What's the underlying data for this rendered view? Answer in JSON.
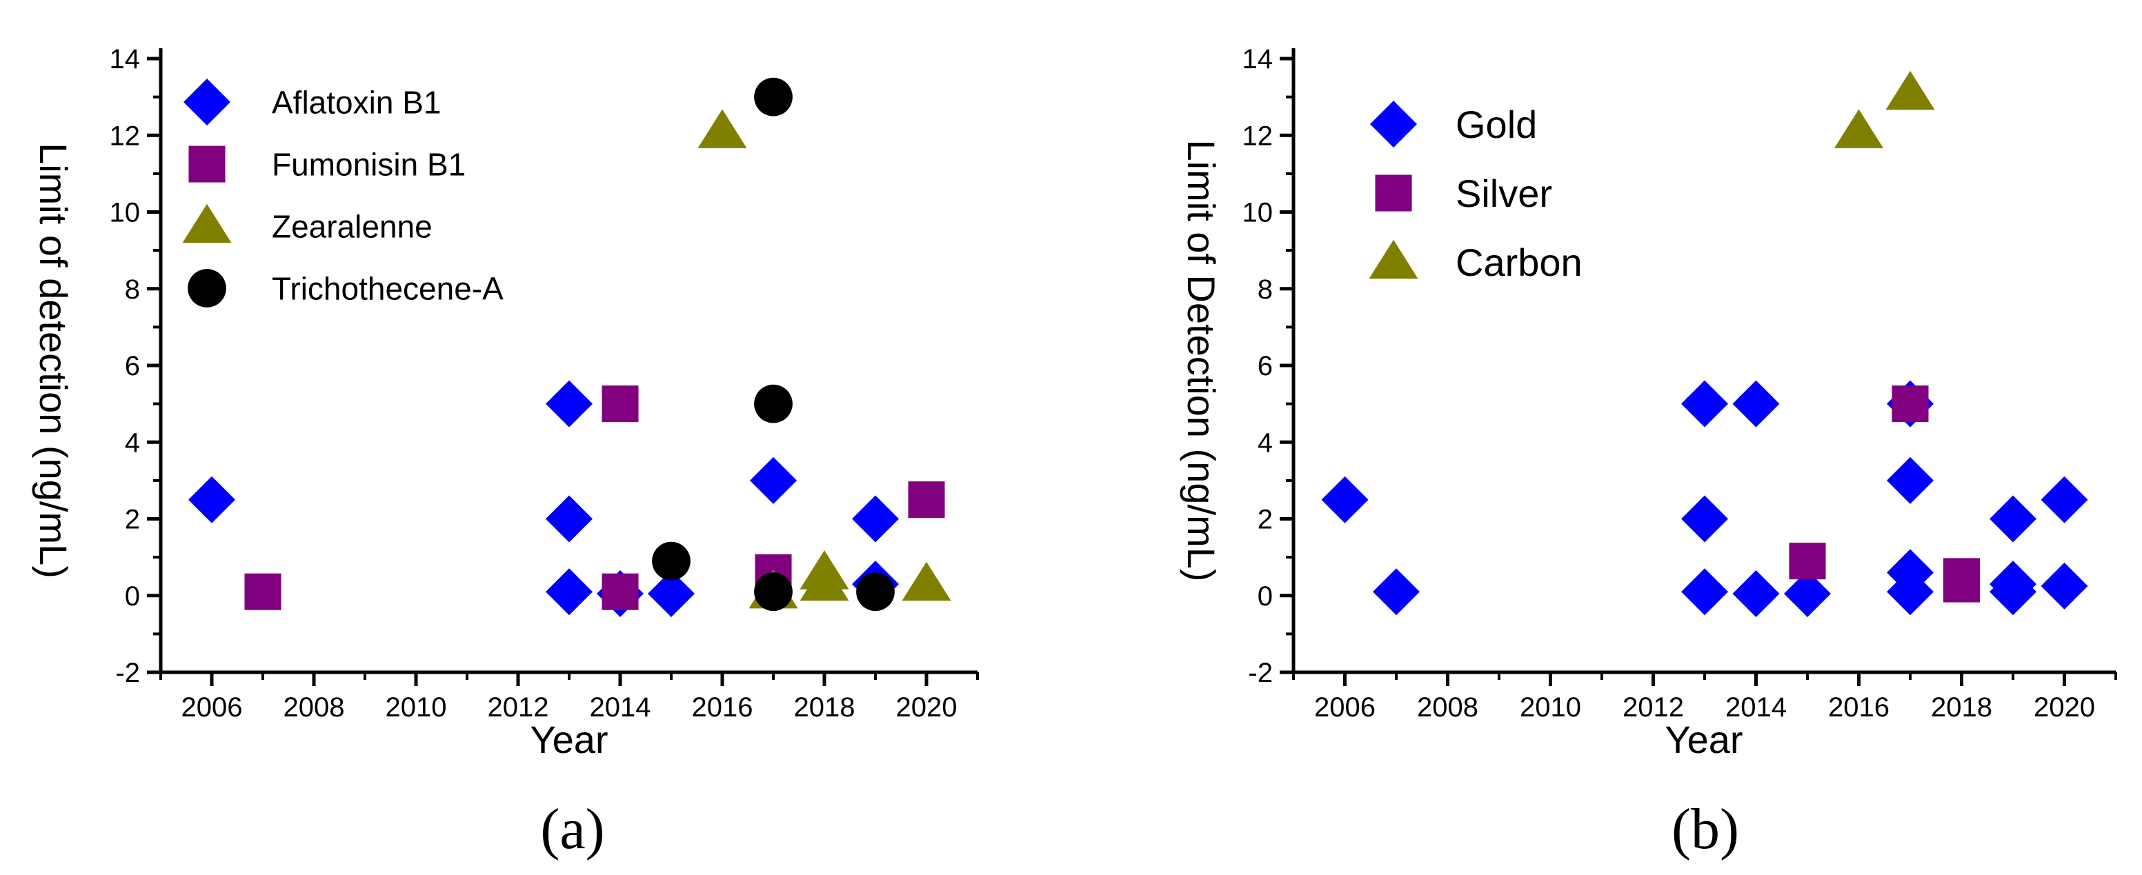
{
  "colors": {
    "aflatoxin": "#0000FF",
    "fumonisin": "#800080",
    "zearalenne": "#808000",
    "trichothecene": "#000000",
    "gold": "#0000FF",
    "silver": "#800080",
    "carbon": "#808000"
  },
  "chart_data": [
    {
      "type": "scatter",
      "panel_label": "(a)",
      "xlabel": "Year",
      "ylabel": "Limit of detection (ng/mL)",
      "xlim": [
        2005,
        2021
      ],
      "ylim": [
        -2,
        14
      ],
      "xticks": [
        "2006",
        "2008",
        "2010",
        "2012",
        "2014",
        "2016",
        "2018",
        "2020"
      ],
      "yticks": [
        "-2",
        "0",
        "2",
        "4",
        "6",
        "8",
        "10",
        "12",
        "14"
      ],
      "legend_position": "top-left",
      "series": [
        {
          "name": "Aflatoxin B1",
          "marker": "diamond",
          "color": "#0000FF",
          "points": [
            [
              2006,
              2.5
            ],
            [
              2013,
              5
            ],
            [
              2013,
              2
            ],
            [
              2013,
              0.1
            ],
            [
              2014,
              0.05
            ],
            [
              2015,
              0.05
            ],
            [
              2017,
              3
            ],
            [
              2019,
              2
            ],
            [
              2019,
              0.3
            ]
          ]
        },
        {
          "name": "Fumonisin B1",
          "marker": "square",
          "color": "#800080",
          "points": [
            [
              2007,
              0.1
            ],
            [
              2014,
              5
            ],
            [
              2014,
              0.1
            ],
            [
              2017,
              0.6
            ],
            [
              2020,
              2.5
            ]
          ]
        },
        {
          "name": "Zearalenne",
          "marker": "triangle",
          "color": "#808000",
          "points": [
            [
              2016,
              12.1
            ],
            [
              2017,
              0.1
            ],
            [
              2018,
              0.6
            ],
            [
              2018,
              0.3
            ],
            [
              2020,
              0.3
            ]
          ]
        },
        {
          "name": "Trichothecene-A",
          "marker": "circle",
          "color": "#000000",
          "points": [
            [
              2015,
              0.9
            ],
            [
              2017,
              13
            ],
            [
              2017,
              5
            ],
            [
              2017,
              0.1
            ],
            [
              2019,
              0.1
            ]
          ]
        }
      ]
    },
    {
      "type": "scatter",
      "panel_label": "(b)",
      "xlabel": "Year",
      "ylabel": "Limit of Detection (ng/mL)",
      "xlim": [
        2005,
        2021
      ],
      "ylim": [
        -2,
        14
      ],
      "xticks": [
        "2006",
        "2008",
        "2010",
        "2012",
        "2014",
        "2016",
        "2018",
        "2020"
      ],
      "yticks": [
        "-2",
        "0",
        "2",
        "4",
        "6",
        "8",
        "10",
        "12",
        "14"
      ],
      "legend_position": "top-left",
      "series": [
        {
          "name": "Gold",
          "marker": "diamond",
          "color": "#0000FF",
          "points": [
            [
              2006,
              2.5
            ],
            [
              2007,
              0.1
            ],
            [
              2013,
              5
            ],
            [
              2013,
              2
            ],
            [
              2013,
              0.1
            ],
            [
              2014,
              5
            ],
            [
              2014,
              0.05
            ],
            [
              2015,
              0.05
            ],
            [
              2017,
              5
            ],
            [
              2017,
              3
            ],
            [
              2017,
              0.6
            ],
            [
              2017,
              0.1
            ],
            [
              2019,
              2
            ],
            [
              2019,
              0.3
            ],
            [
              2019,
              0.1
            ],
            [
              2020,
              2.5
            ],
            [
              2020,
              0.25
            ]
          ]
        },
        {
          "name": "Silver",
          "marker": "square",
          "color": "#800080",
          "points": [
            [
              2015,
              0.9
            ],
            [
              2017,
              5
            ],
            [
              2018,
              0.5
            ],
            [
              2018,
              0.3
            ]
          ]
        },
        {
          "name": "Carbon",
          "marker": "triangle",
          "color": "#808000",
          "points": [
            [
              2016,
              12.1
            ],
            [
              2017,
              13.1
            ]
          ]
        }
      ]
    }
  ]
}
